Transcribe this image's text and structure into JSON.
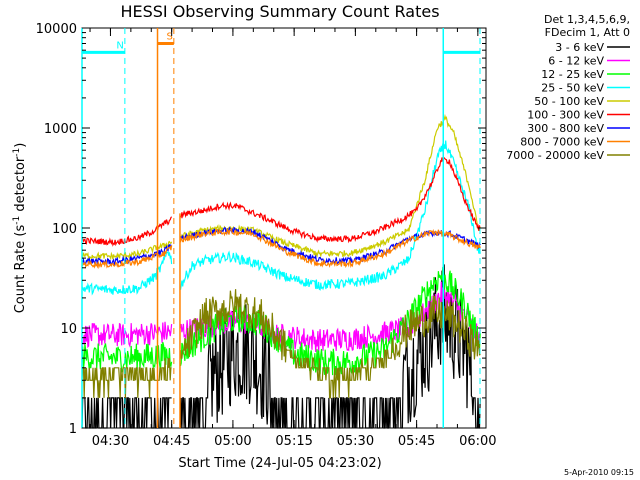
{
  "chart_data": {
    "type": "line",
    "title": "HESSI Observing Summary Count Rates",
    "xlabel": "Start Time (24-Jul-05 04:23:02)",
    "ylabel_main": "Count Rate (s",
    "ylabel_sup": "-1",
    "ylabel_rest": " detector",
    "ylabel_end": ")",
    "x_domain": [
      "04:23:02",
      "06:02:00"
    ],
    "x_ticks": [
      "04:30",
      "04:45",
      "05:00",
      "05:15",
      "05:30",
      "05:45",
      "06:00"
    ],
    "x_tick_minutes": [
      6.97,
      21.97,
      36.97,
      51.97,
      66.97,
      81.97,
      96.97
    ],
    "y_scale": "log",
    "ylim": [
      1,
      10000
    ],
    "y_ticks": [
      "1",
      "10",
      "100",
      "1000",
      "10000"
    ],
    "y_tick_values": [
      1,
      10,
      100,
      1000,
      10000
    ],
    "legend_header": [
      "Det 1,3,4,5,6,9,",
      "FDecim 1, Att 0"
    ],
    "legend_placement": "right",
    "date_stamp": "5-Apr-2010 09:15",
    "series": [
      {
        "name": "3 - 6 keV",
        "color": "#000000"
      },
      {
        "name": "6 - 12 keV",
        "color": "#ff00ff"
      },
      {
        "name": "12 - 25 keV",
        "color": "#00ff00"
      },
      {
        "name": "25 - 50 keV",
        "color": "#00ffff"
      },
      {
        "name": "50 - 100 keV",
        "color": "#cccc00"
      },
      {
        "name": "100 - 300 keV",
        "color": "#ff0000"
      },
      {
        "name": "300 - 800 keV",
        "color": "#0000ff"
      },
      {
        "name": "800 - 7000 keV",
        "color": "#ff8000"
      },
      {
        "name": "7000 - 20000 keV",
        "color": "#808000"
      }
    ],
    "series_points": {
      "3 - 6 keV": [
        [
          0,
          1.5
        ],
        [
          10,
          1.5
        ],
        [
          20,
          1.5
        ],
        [
          24,
          1.6
        ],
        [
          34,
          4
        ],
        [
          37,
          6
        ],
        [
          41,
          6
        ],
        [
          46,
          3
        ],
        [
          52,
          1.4
        ],
        [
          62,
          1.2
        ],
        [
          72,
          1.5
        ],
        [
          76,
          2
        ],
        [
          82,
          5
        ],
        [
          86,
          9
        ],
        [
          88,
          14
        ],
        [
          91,
          10
        ],
        [
          94,
          6
        ],
        [
          97,
          2
        ]
      ],
      "6 - 12 keV": [
        [
          0,
          8.5
        ],
        [
          10,
          8.5
        ],
        [
          20,
          9
        ],
        [
          24,
          9.3
        ],
        [
          34,
          11
        ],
        [
          38,
          11.5
        ],
        [
          42,
          11
        ],
        [
          48,
          8.5
        ],
        [
          58,
          7.5
        ],
        [
          66,
          7.8
        ],
        [
          72,
          8.5
        ],
        [
          80,
          10
        ],
        [
          86,
          17
        ],
        [
          88,
          22
        ],
        [
          90,
          20
        ],
        [
          94,
          13
        ],
        [
          97,
          8
        ]
      ],
      "12 - 25 keV": [
        [
          0,
          5.2
        ],
        [
          10,
          5
        ],
        [
          20,
          5.3
        ],
        [
          24,
          5.5
        ],
        [
          34,
          11
        ],
        [
          38,
          12.5
        ],
        [
          44,
          11
        ],
        [
          52,
          5.5
        ],
        [
          60,
          4.5
        ],
        [
          66,
          4.6
        ],
        [
          74,
          6
        ],
        [
          80,
          12
        ],
        [
          86,
          28
        ],
        [
          88,
          34
        ],
        [
          90,
          28
        ],
        [
          94,
          16
        ],
        [
          97,
          8
        ]
      ],
      "25 - 50 keV": [
        [
          0,
          25
        ],
        [
          8,
          24
        ],
        [
          14,
          25
        ],
        [
          18,
          33
        ],
        [
          20,
          45
        ],
        [
          21,
          62
        ],
        [
          24,
          26
        ],
        [
          27,
          42
        ],
        [
          30,
          47
        ],
        [
          36,
          52
        ],
        [
          42,
          45
        ],
        [
          50,
          32
        ],
        [
          58,
          27
        ],
        [
          66,
          28
        ],
        [
          74,
          33
        ],
        [
          80,
          48
        ],
        [
          84,
          150
        ],
        [
          87,
          500
        ],
        [
          89,
          700
        ],
        [
          91,
          450
        ],
        [
          95,
          150
        ],
        [
          97,
          60
        ]
      ],
      "50 - 100 keV": [
        [
          0,
          53
        ],
        [
          8,
          52
        ],
        [
          14,
          55
        ],
        [
          18,
          63
        ],
        [
          20,
          66
        ],
        [
          24,
          82
        ],
        [
          30,
          95
        ],
        [
          36,
          100
        ],
        [
          42,
          95
        ],
        [
          50,
          70
        ],
        [
          58,
          55
        ],
        [
          66,
          56
        ],
        [
          74,
          72
        ],
        [
          80,
          95
        ],
        [
          84,
          300
        ],
        [
          87,
          1000
        ],
        [
          89,
          1250
        ],
        [
          91,
          900
        ],
        [
          95,
          250
        ],
        [
          97,
          100
        ]
      ],
      "100 - 300 keV": [
        [
          0,
          75
        ],
        [
          8,
          72
        ],
        [
          14,
          80
        ],
        [
          18,
          95
        ],
        [
          20,
          110
        ],
        [
          24,
          135
        ],
        [
          30,
          150
        ],
        [
          34,
          168
        ],
        [
          38,
          165
        ],
        [
          44,
          130
        ],
        [
          52,
          92
        ],
        [
          58,
          78
        ],
        [
          66,
          78
        ],
        [
          72,
          92
        ],
        [
          78,
          120
        ],
        [
          82,
          150
        ],
        [
          86,
          300
        ],
        [
          88,
          480
        ],
        [
          90,
          470
        ],
        [
          94,
          180
        ],
        [
          97,
          100
        ]
      ],
      "300 - 800 keV": [
        [
          0,
          47
        ],
        [
          8,
          46
        ],
        [
          14,
          50
        ],
        [
          18,
          55
        ],
        [
          20,
          58
        ],
        [
          24,
          78
        ],
        [
          30,
          90
        ],
        [
          36,
          95
        ],
        [
          42,
          92
        ],
        [
          50,
          62
        ],
        [
          58,
          48
        ],
        [
          66,
          47
        ],
        [
          74,
          58
        ],
        [
          80,
          78
        ],
        [
          86,
          90
        ],
        [
          90,
          88
        ],
        [
          94,
          76
        ],
        [
          97,
          67
        ]
      ],
      "800 - 7000 keV": [
        [
          0,
          44
        ],
        [
          8,
          43
        ],
        [
          14,
          46
        ],
        [
          18,
          52
        ],
        [
          20,
          55
        ],
        [
          24,
          75
        ],
        [
          30,
          88
        ],
        [
          36,
          92
        ],
        [
          42,
          88
        ],
        [
          50,
          58
        ],
        [
          58,
          44
        ],
        [
          66,
          44
        ],
        [
          74,
          55
        ],
        [
          80,
          75
        ],
        [
          86,
          92
        ],
        [
          90,
          85
        ],
        [
          94,
          72
        ],
        [
          97,
          64
        ]
      ],
      "7000 - 20000 keV": [
        [
          0,
          3.4
        ],
        [
          10,
          3.2
        ],
        [
          20,
          3.6
        ],
        [
          24,
          5
        ],
        [
          30,
          13
        ],
        [
          34,
          15
        ],
        [
          38,
          17
        ],
        [
          44,
          13
        ],
        [
          52,
          4.8
        ],
        [
          60,
          3.4
        ],
        [
          66,
          3.4
        ],
        [
          74,
          4.8
        ],
        [
          80,
          10
        ],
        [
          86,
          14
        ],
        [
          90,
          13
        ],
        [
          94,
          9
        ],
        [
          97,
          6
        ]
      ]
    },
    "markers": [
      {
        "label": "N",
        "color": "#00ffff",
        "level": 5700,
        "x_start": 0,
        "x_end": 10.5
      },
      {
        "label": "S",
        "color": "#ff8000",
        "level": 7000,
        "x_start": 18.5,
        "x_end": 22.5
      },
      {
        "label": "",
        "color": "#00ffff",
        "level": 5700,
        "x_start": 88.5,
        "x_end": 97.5
      }
    ]
  }
}
